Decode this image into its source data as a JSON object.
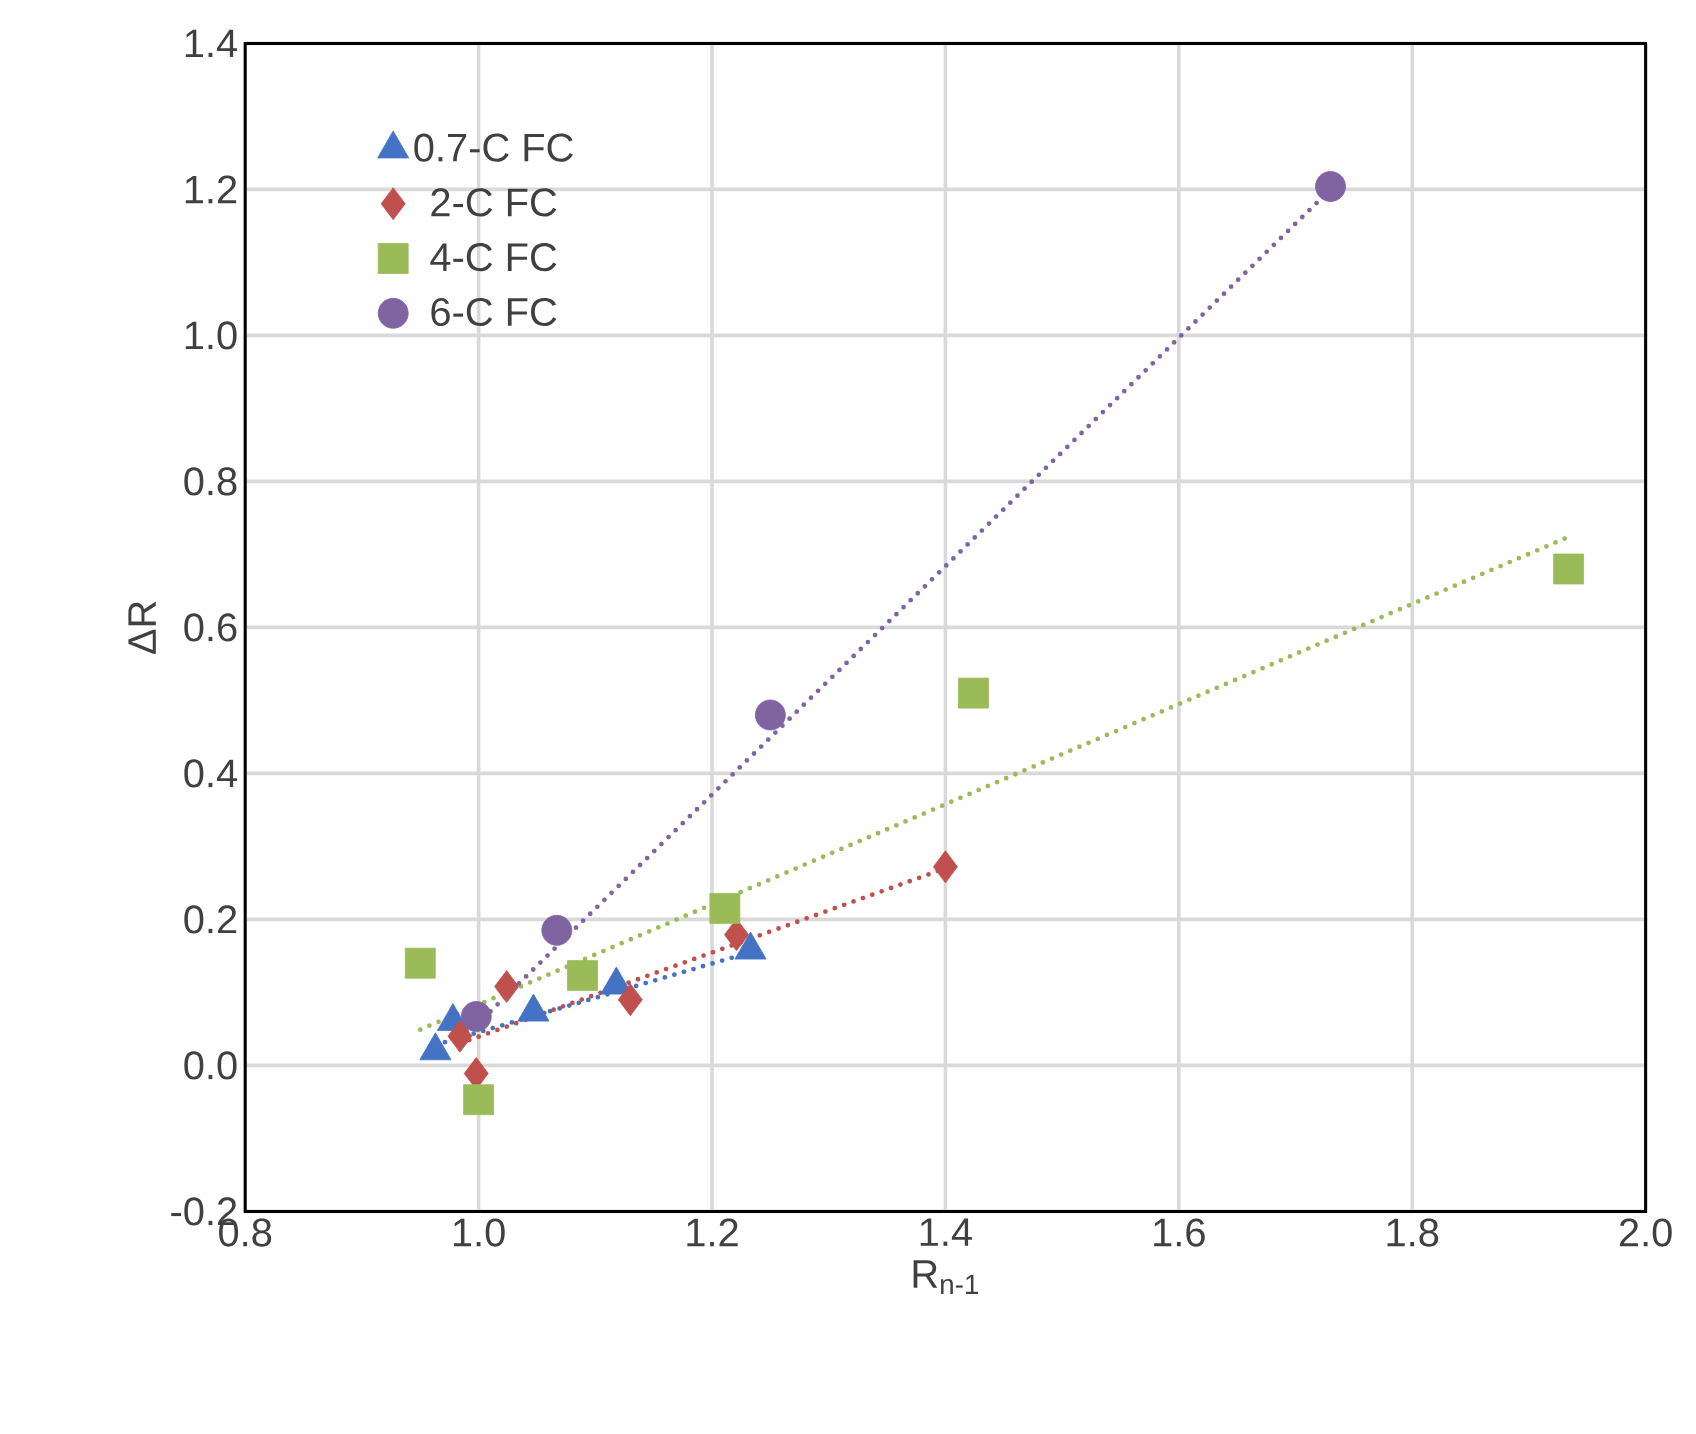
{
  "chart_data": {
    "type": "scatter",
    "xlabel": "R$_{n-1}$",
    "ylabel": "ΔR",
    "xlim": [
      0.8,
      2.0
    ],
    "ylim": [
      -0.2,
      1.4
    ],
    "xticks": [
      {
        "value": 0.8,
        "label": "0.8"
      },
      {
        "value": 1.0,
        "label": "1.0"
      },
      {
        "value": 1.2,
        "label": "1.2"
      },
      {
        "value": 1.4,
        "label": "1.4"
      },
      {
        "value": 1.6,
        "label": "1.6"
      },
      {
        "value": 1.8,
        "label": "1.8"
      },
      {
        "value": 2.0,
        "label": "2.0"
      }
    ],
    "yticks": [
      {
        "value": -0.2,
        "label": "-0.2"
      },
      {
        "value": 0.0,
        "label": "0.0"
      },
      {
        "value": 0.2,
        "label": "0.2"
      },
      {
        "value": 0.4,
        "label": "0.4"
      },
      {
        "value": 0.6,
        "label": "0.6"
      },
      {
        "value": 0.8,
        "label": "0.8"
      },
      {
        "value": 1.0,
        "label": "1.0"
      },
      {
        "value": 1.2,
        "label": "1.2"
      },
      {
        "value": 1.4,
        "label": "1.4"
      }
    ],
    "grid": true,
    "legend": "top left",
    "series": [
      {
        "name": "0.7-C FC",
        "color": "#4472c4",
        "marker": "triangle",
        "x": [
          0.963,
          0.978,
          1.047,
          1.118,
          1.233
        ],
        "values": [
          0.02,
          0.06,
          0.073,
          0.11,
          0.158
        ]
      },
      {
        "name": "2-C FC",
        "color": "#c0504d",
        "marker": "diamond",
        "x": [
          0.984,
          0.998,
          1.024,
          1.13,
          1.221,
          1.4
        ],
        "values": [
          0.04,
          -0.011,
          0.108,
          0.09,
          0.179,
          0.272
        ]
      },
      {
        "name": "4-C FC",
        "color": "#9bbb59",
        "marker": "square",
        "x": [
          0.95,
          1.0,
          1.089,
          1.211,
          1.424,
          1.934
        ],
        "values": [
          0.14,
          -0.047,
          0.123,
          0.215,
          0.51,
          0.68
        ]
      },
      {
        "name": "6-C FC",
        "color": "#8064a2",
        "marker": "circle",
        "x": [
          0.998,
          1.067,
          1.25,
          1.73
        ],
        "values": [
          0.067,
          0.185,
          0.48,
          1.204
        ]
      },
      {
        "type": "line",
        "color": "#4472c4",
        "marker": "none",
        "line_style": "dotted",
        "x": [
          0.963,
          1.233
        ],
        "values": [
          0.028,
          0.155
        ]
      },
      {
        "type": "line",
        "color": "#c0504d",
        "marker": "none",
        "line_style": "dotted",
        "x": [
          0.984,
          1.4
        ],
        "values": [
          0.03,
          0.27
        ]
      },
      {
        "type": "line",
        "color": "#9bbb59",
        "marker": "none",
        "line_style": "dotted",
        "x": [
          0.95,
          1.934
        ],
        "values": [
          0.049,
          0.724
        ]
      },
      {
        "type": "line",
        "color": "#8064a2",
        "marker": "none",
        "line_style": "dotted",
        "x": [
          0.998,
          1.73
        ],
        "values": [
          0.055,
          1.2
        ]
      }
    ]
  }
}
